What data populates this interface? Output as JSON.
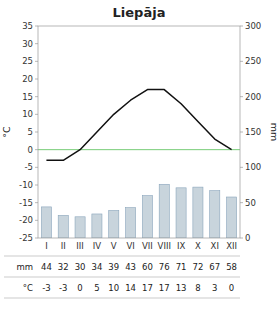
{
  "chart_data": {
    "type": "bar",
    "title": "Liepāja",
    "categories": [
      "I",
      "II",
      "III",
      "IV",
      "V",
      "VI",
      "VII",
      "VIII",
      "IX",
      "X",
      "XI",
      "XII"
    ],
    "series": [
      {
        "name": "mm",
        "type": "bar",
        "axis": "y2",
        "color": "#c8d4dc",
        "values": [
          44,
          32,
          30,
          34,
          39,
          43,
          60,
          76,
          71,
          72,
          67,
          58
        ]
      },
      {
        "name": "°C",
        "type": "line",
        "color": "#111111",
        "values": [
          -3,
          -3,
          0,
          5,
          10,
          14,
          17,
          17,
          13,
          8,
          3,
          0
        ]
      }
    ],
    "y_label": "°C",
    "y2_label": "mm",
    "ylim": [
      -25,
      35
    ],
    "yticks": [
      -25,
      -20,
      -15,
      -10,
      -5,
      0,
      5,
      10,
      15,
      20,
      25,
      30,
      35
    ],
    "y2lim": [
      0,
      300
    ],
    "y2ticks": [
      0,
      50,
      100,
      150,
      200,
      250,
      300
    ],
    "hlines": [
      {
        "value": 0,
        "color": "#77cc77"
      }
    ],
    "grid": false,
    "data_labels": true
  }
}
